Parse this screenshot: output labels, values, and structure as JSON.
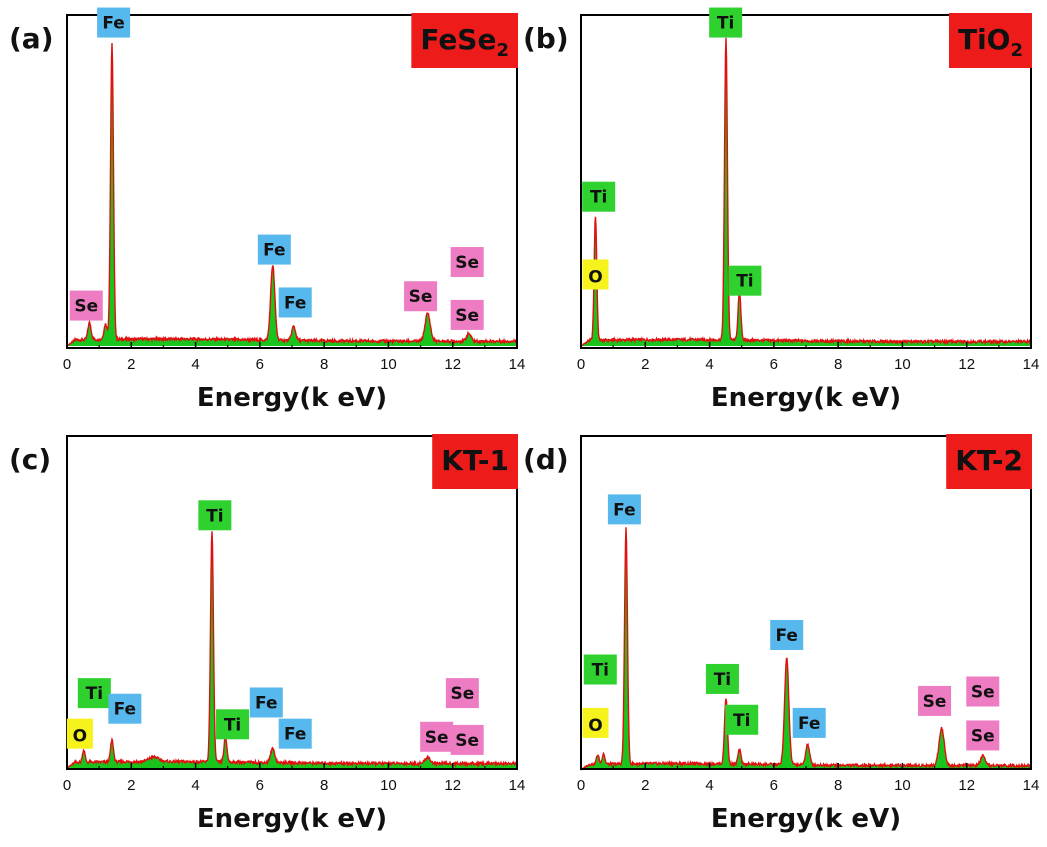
{
  "colors": {
    "spectrum_line": "#e01010",
    "spectrum_fill": "#19c51c",
    "title_box": "#ee1b1b",
    "Fe": "#57b8ee",
    "Ti": "#2ed12e",
    "Se": "#ee7cc2",
    "O": "#f6f21c"
  },
  "chart_data": [
    {
      "type": "area",
      "panel_label": "(a)",
      "title": "FeSe",
      "title_sub": "2",
      "xlabel": "Energy(k eV)",
      "ylabel": "",
      "xlim": [
        0,
        14
      ],
      "ylim": [
        0,
        100
      ],
      "xticks": [
        "0",
        "2",
        "4",
        "6",
        "8",
        "10",
        "12",
        "14"
      ],
      "grid": false,
      "baseline": 1.8,
      "peaks": [
        {
          "x": 0.7,
          "y": 5.5,
          "w": 0.05
        },
        {
          "x": 1.2,
          "y": 5.0,
          "w": 0.05
        },
        {
          "x": 1.4,
          "y": 95,
          "w": 0.045
        },
        {
          "x": 6.4,
          "y": 24,
          "w": 0.065
        },
        {
          "x": 7.05,
          "y": 4.5,
          "w": 0.06
        },
        {
          "x": 11.22,
          "y": 9,
          "w": 0.08
        },
        {
          "x": 12.5,
          "y": 2.5,
          "w": 0.07
        }
      ],
      "annotations": [
        {
          "text": "Fe",
          "element": "Fe",
          "x": 1.45,
          "y": 104
        },
        {
          "text": "Se",
          "element": "Se",
          "x": 0.6,
          "y": 13
        },
        {
          "text": "Fe",
          "element": "Fe",
          "x": 6.45,
          "y": 31
        },
        {
          "text": "Fe",
          "element": "Fe",
          "x": 7.1,
          "y": 14
        },
        {
          "text": "Se",
          "element": "Se",
          "x": 11.0,
          "y": 16
        },
        {
          "text": "Se",
          "element": "Se",
          "x": 12.45,
          "y": 27
        },
        {
          "text": "Se",
          "element": "Se",
          "x": 12.45,
          "y": 10
        }
      ]
    },
    {
      "type": "area",
      "panel_label": "(b)",
      "title": "TiO",
      "title_sub": "2",
      "xlabel": "Energy(k eV)",
      "ylabel": "",
      "xlim": [
        0,
        14
      ],
      "ylim": [
        0,
        100
      ],
      "xticks": [
        "0",
        "2",
        "4",
        "6",
        "8",
        "10",
        "12",
        "14"
      ],
      "grid": false,
      "baseline": 1.6,
      "peaks": [
        {
          "x": 0.45,
          "y": 40,
          "w": 0.04
        },
        {
          "x": 4.51,
          "y": 97,
          "w": 0.045
        },
        {
          "x": 4.93,
          "y": 15,
          "w": 0.045
        }
      ],
      "annotations": [
        {
          "text": "Ti",
          "element": "Ti",
          "x": 0.55,
          "y": 48
        },
        {
          "text": "O",
          "element": "O",
          "x": 0.45,
          "y": 23
        },
        {
          "text": "Ti",
          "element": "Ti",
          "x": 4.5,
          "y": 104
        },
        {
          "text": "Ti",
          "element": "Ti",
          "x": 5.1,
          "y": 21
        }
      ]
    },
    {
      "type": "area",
      "panel_label": "(c)",
      "title": "KT-1",
      "title_sub": "",
      "xlabel": "Energy(k eV)",
      "ylabel": "",
      "xlim": [
        0,
        14
      ],
      "ylim": [
        0,
        100
      ],
      "xticks": [
        "0",
        "2",
        "4",
        "6",
        "8",
        "10",
        "12",
        "14"
      ],
      "grid": false,
      "baseline": 1.6,
      "peaks": [
        {
          "x": 0.52,
          "y": 4,
          "w": 0.04
        },
        {
          "x": 1.4,
          "y": 7,
          "w": 0.045
        },
        {
          "x": 2.7,
          "y": 1.5,
          "w": 0.15
        },
        {
          "x": 4.51,
          "y": 74,
          "w": 0.045
        },
        {
          "x": 4.93,
          "y": 8,
          "w": 0.045
        },
        {
          "x": 6.4,
          "y": 4.5,
          "w": 0.065
        },
        {
          "x": 11.22,
          "y": 2,
          "w": 0.08
        }
      ],
      "annotations": [
        {
          "text": "Ti",
          "element": "Ti",
          "x": 4.6,
          "y": 81
        },
        {
          "text": "Ti",
          "element": "Ti",
          "x": 0.85,
          "y": 24
        },
        {
          "text": "O",
          "element": "O",
          "x": 0.4,
          "y": 11
        },
        {
          "text": "Fe",
          "element": "Fe",
          "x": 1.8,
          "y": 19
        },
        {
          "text": "Ti",
          "element": "Ti",
          "x": 5.15,
          "y": 14
        },
        {
          "text": "Fe",
          "element": "Fe",
          "x": 6.2,
          "y": 21
        },
        {
          "text": "Fe",
          "element": "Fe",
          "x": 7.1,
          "y": 11
        },
        {
          "text": "Se",
          "element": "Se",
          "x": 11.5,
          "y": 10
        },
        {
          "text": "Se",
          "element": "Se",
          "x": 12.3,
          "y": 24
        },
        {
          "text": "Se",
          "element": "Se",
          "x": 12.45,
          "y": 9
        }
      ]
    },
    {
      "type": "area",
      "panel_label": "(d)",
      "title": "KT-2",
      "title_sub": "",
      "xlabel": "Energy(k eV)",
      "ylabel": "",
      "xlim": [
        0,
        14
      ],
      "ylim": [
        0,
        100
      ],
      "xticks": [
        "0",
        "2",
        "4",
        "6",
        "8",
        "10",
        "12",
        "14"
      ],
      "grid": false,
      "baseline": 1.6,
      "peaks": [
        {
          "x": 0.52,
          "y": 3,
          "w": 0.04
        },
        {
          "x": 0.7,
          "y": 3.5,
          "w": 0.04
        },
        {
          "x": 1.4,
          "y": 75,
          "w": 0.045
        },
        {
          "x": 4.51,
          "y": 21,
          "w": 0.045
        },
        {
          "x": 4.93,
          "y": 4.5,
          "w": 0.045
        },
        {
          "x": 6.4,
          "y": 34,
          "w": 0.065
        },
        {
          "x": 7.05,
          "y": 6.5,
          "w": 0.06
        },
        {
          "x": 11.22,
          "y": 12,
          "w": 0.08
        },
        {
          "x": 12.5,
          "y": 3,
          "w": 0.07
        }
      ],
      "annotations": [
        {
          "text": "Fe",
          "element": "Fe",
          "x": 1.35,
          "y": 83
        },
        {
          "text": "Ti",
          "element": "Ti",
          "x": 0.6,
          "y": 32
        },
        {
          "text": "O",
          "element": "O",
          "x": 0.45,
          "y": 15
        },
        {
          "text": "Ti",
          "element": "Ti",
          "x": 4.4,
          "y": 29
        },
        {
          "text": "Ti",
          "element": "Ti",
          "x": 5.0,
          "y": 16
        },
        {
          "text": "Fe",
          "element": "Fe",
          "x": 6.4,
          "y": 43
        },
        {
          "text": "Fe",
          "element": "Fe",
          "x": 7.1,
          "y": 15
        },
        {
          "text": "Se",
          "element": "Se",
          "x": 11.0,
          "y": 22
        },
        {
          "text": "Se",
          "element": "Se",
          "x": 12.5,
          "y": 25
        },
        {
          "text": "Se",
          "element": "Se",
          "x": 12.5,
          "y": 11
        }
      ]
    }
  ]
}
